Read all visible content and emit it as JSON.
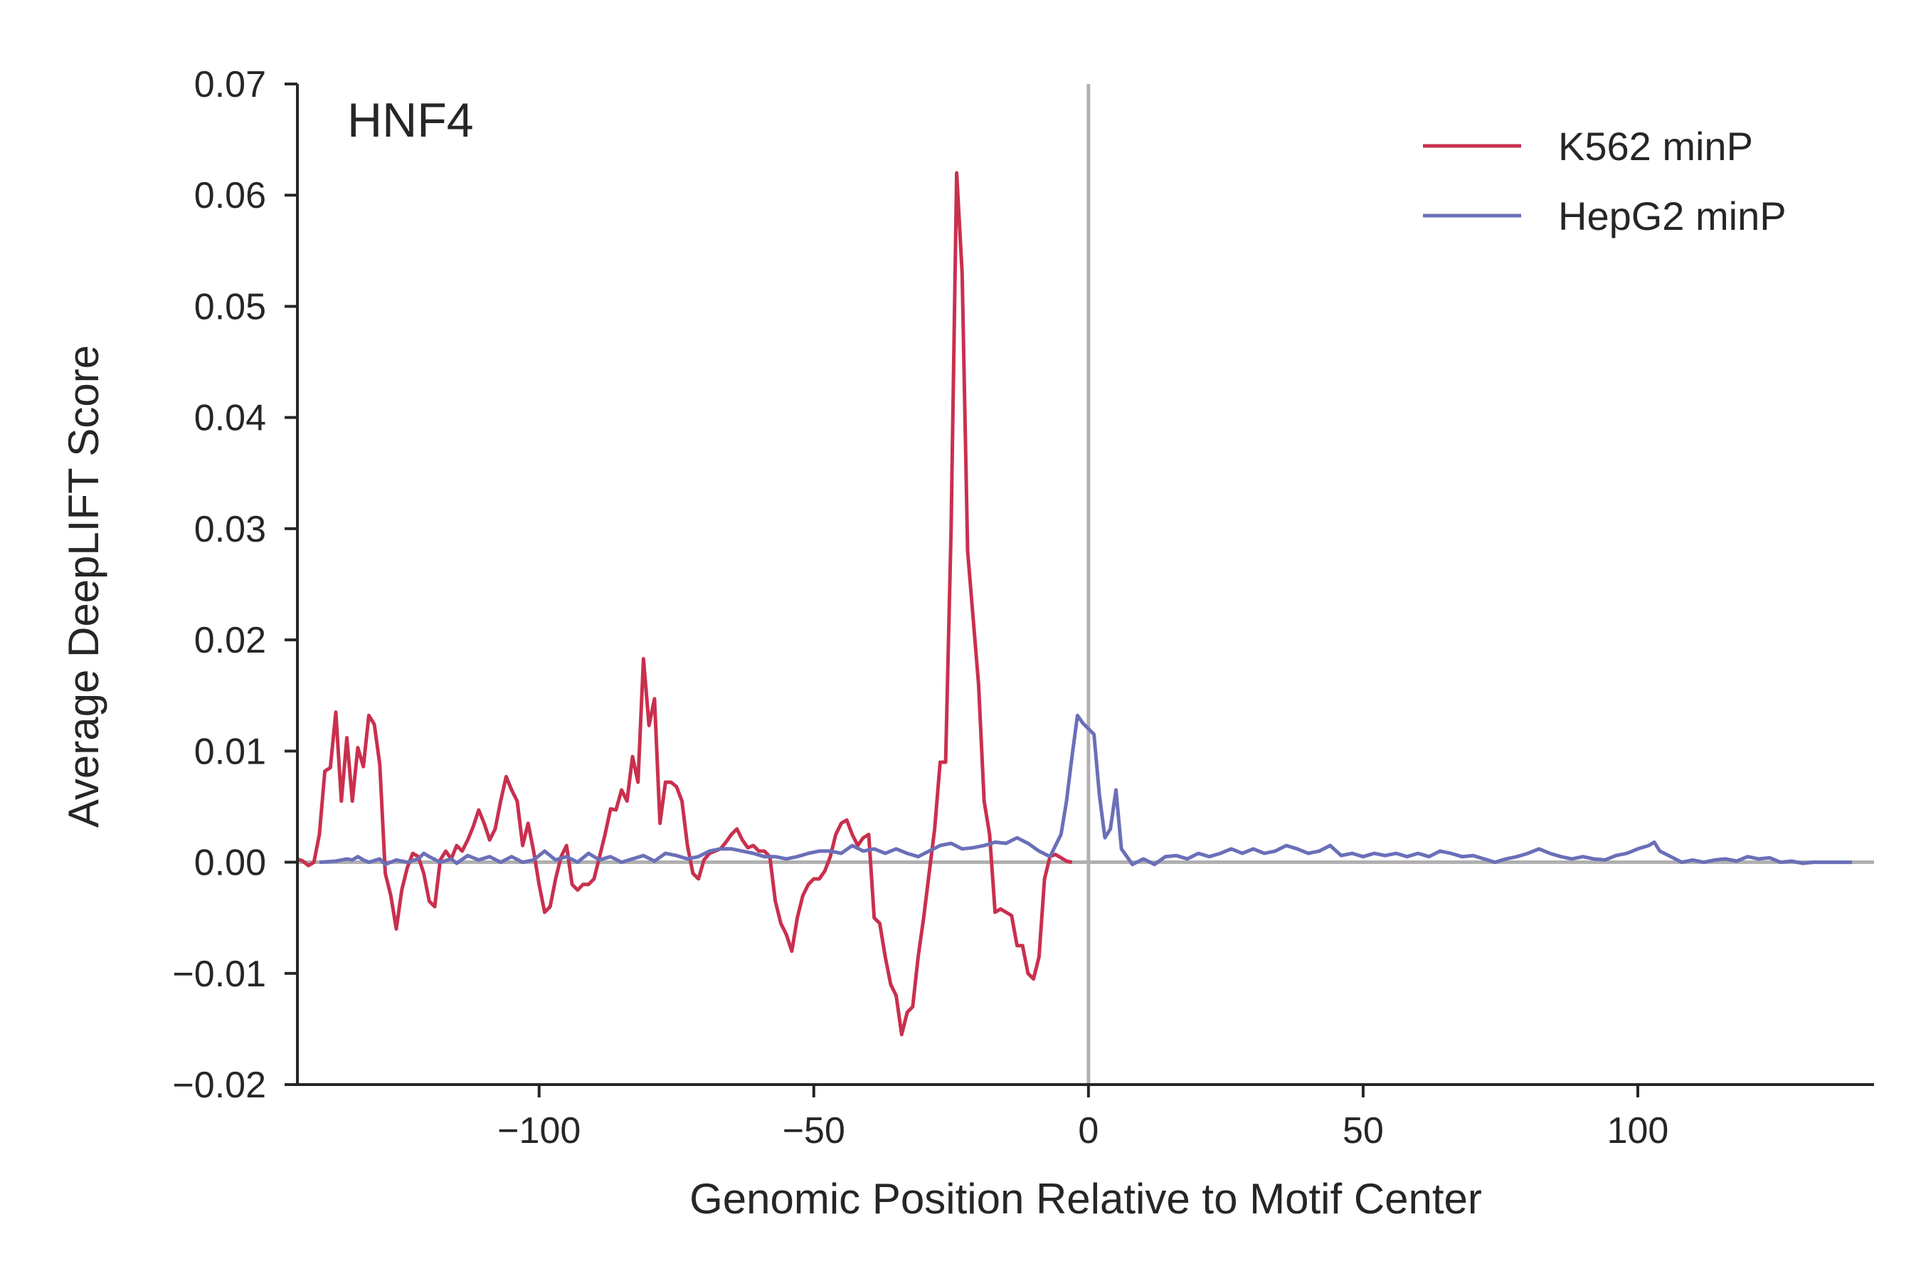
{
  "chart_data": {
    "type": "line",
    "title": "HNF4",
    "xlabel": "Genomic Position Relative to Motif Center",
    "ylabel": "Average DeepLIFT Score",
    "xlim": [
      -144,
      143
    ],
    "ylim": [
      -0.02,
      0.07
    ],
    "xticks": [
      -100,
      -50,
      0,
      50,
      100
    ],
    "xtick_labels": [
      "−100",
      "−50",
      "0",
      "50",
      "100"
    ],
    "yticks": [
      -0.02,
      -0.01,
      0.0,
      0.01,
      0.02,
      0.03,
      0.04,
      0.05,
      0.06,
      0.07
    ],
    "ytick_labels": [
      "−0.02",
      "−0.01",
      "0.00",
      "0.01",
      "0.02",
      "0.03",
      "0.04",
      "0.05",
      "0.06",
      "0.07"
    ],
    "reference_lines": {
      "vertical_x": 0,
      "horizontal_y": 0,
      "color": "#b0b0b0"
    },
    "grid": false,
    "legend_position": "top-right",
    "series": [
      {
        "name": "K562 minP",
        "color": "#c9304e",
        "points": [
          [
            -144,
            0.0003
          ],
          [
            -143,
            0.0001
          ],
          [
            -142,
            -0.0003
          ],
          [
            -141,
            0.0
          ],
          [
            -140,
            0.0025
          ],
          [
            -139,
            0.0082
          ],
          [
            -138,
            0.0085
          ],
          [
            -137,
            0.0135
          ],
          [
            -136,
            0.0055
          ],
          [
            -135,
            0.0112
          ],
          [
            -134,
            0.0055
          ],
          [
            -133,
            0.0103
          ],
          [
            -132,
            0.0086
          ],
          [
            -131,
            0.0132
          ],
          [
            -130,
            0.0124
          ],
          [
            -129,
            0.0088
          ],
          [
            -128,
            -0.001
          ],
          [
            -127,
            -0.003
          ],
          [
            -126,
            -0.006
          ],
          [
            -125,
            -0.0025
          ],
          [
            -124,
            -0.0005
          ],
          [
            -123,
            0.0008
          ],
          [
            -122,
            0.0005
          ],
          [
            -121,
            -0.001
          ],
          [
            -120,
            -0.0035
          ],
          [
            -119,
            -0.004
          ],
          [
            -118,
            0.0002
          ],
          [
            -117,
            0.001
          ],
          [
            -116,
            0.0003
          ],
          [
            -115,
            0.0015
          ],
          [
            -114,
            0.001
          ],
          [
            -113,
            0.002
          ],
          [
            -112,
            0.0032
          ],
          [
            -111,
            0.0047
          ],
          [
            -110,
            0.0035
          ],
          [
            -109,
            0.002
          ],
          [
            -108,
            0.003
          ],
          [
            -107,
            0.0055
          ],
          [
            -106,
            0.0077
          ],
          [
            -105,
            0.0065
          ],
          [
            -104,
            0.0055
          ],
          [
            -103,
            0.0015
          ],
          [
            -102,
            0.0035
          ],
          [
            -101,
            0.001
          ],
          [
            -100,
            -0.002
          ],
          [
            -99,
            -0.0045
          ],
          [
            -98,
            -0.004
          ],
          [
            -97,
            -0.0015
          ],
          [
            -96,
            0.0005
          ],
          [
            -95,
            0.0015
          ],
          [
            -94,
            -0.002
          ],
          [
            -93,
            -0.0025
          ],
          [
            -92,
            -0.002
          ],
          [
            -91,
            -0.002
          ],
          [
            -90,
            -0.0015
          ],
          [
            -89,
            0.0005
          ],
          [
            -88,
            0.0025
          ],
          [
            -87,
            0.0048
          ],
          [
            -86,
            0.0047
          ],
          [
            -85,
            0.0065
          ],
          [
            -84,
            0.0055
          ],
          [
            -83,
            0.0095
          ],
          [
            -82,
            0.0072
          ],
          [
            -81,
            0.0183
          ],
          [
            -80,
            0.0123
          ],
          [
            -79,
            0.0147
          ],
          [
            -78,
            0.0035
          ],
          [
            -77,
            0.0072
          ],
          [
            -76,
            0.0072
          ],
          [
            -75,
            0.0068
          ],
          [
            -74,
            0.0055
          ],
          [
            -73,
            0.0015
          ],
          [
            -72,
            -0.001
          ],
          [
            -71,
            -0.0015
          ],
          [
            -70,
            0.0002
          ],
          [
            -69,
            0.0008
          ],
          [
            -68,
            0.001
          ],
          [
            -67,
            0.0012
          ],
          [
            -66,
            0.0018
          ],
          [
            -65,
            0.0025
          ],
          [
            -64,
            0.003
          ],
          [
            -63,
            0.002
          ],
          [
            -62,
            0.0013
          ],
          [
            -61,
            0.0015
          ],
          [
            -60,
            0.001
          ],
          [
            -59,
            0.001
          ],
          [
            -58,
            0.0005
          ],
          [
            -57,
            -0.0035
          ],
          [
            -56,
            -0.0055
          ],
          [
            -55,
            -0.0065
          ],
          [
            -54,
            -0.008
          ],
          [
            -53,
            -0.005
          ],
          [
            -52,
            -0.003
          ],
          [
            -51,
            -0.002
          ],
          [
            -50,
            -0.0015
          ],
          [
            -49,
            -0.0015
          ],
          [
            -48,
            -0.0008
          ],
          [
            -47,
            0.0005
          ],
          [
            -46,
            0.0025
          ],
          [
            -45,
            0.0035
          ],
          [
            -44,
            0.0038
          ],
          [
            -43,
            0.0025
          ],
          [
            -42,
            0.0015
          ],
          [
            -41,
            0.0022
          ],
          [
            -40,
            0.0025
          ],
          [
            -39,
            -0.005
          ],
          [
            -38,
            -0.0055
          ],
          [
            -37,
            -0.0085
          ],
          [
            -36,
            -0.011
          ],
          [
            -35,
            -0.012
          ],
          [
            -34,
            -0.0155
          ],
          [
            -33,
            -0.0135
          ],
          [
            -32,
            -0.013
          ],
          [
            -31,
            -0.0085
          ],
          [
            -30,
            -0.005
          ],
          [
            -29,
            -0.001
          ],
          [
            -28,
            0.003
          ],
          [
            -27,
            0.009
          ],
          [
            -26,
            0.009
          ],
          [
            -25,
            0.03
          ],
          [
            -24,
            0.062
          ],
          [
            -23,
            0.053
          ],
          [
            -22,
            0.028
          ],
          [
            -21,
            0.022
          ],
          [
            -20,
            0.016
          ],
          [
            -19,
            0.0055
          ],
          [
            -18,
            0.0025
          ],
          [
            -17,
            -0.0045
          ],
          [
            -16,
            -0.0042
          ],
          [
            -15,
            -0.0045
          ],
          [
            -14,
            -0.0048
          ],
          [
            -13,
            -0.0075
          ],
          [
            -12,
            -0.0075
          ],
          [
            -11,
            -0.01
          ],
          [
            -10,
            -0.0105
          ],
          [
            -9,
            -0.0085
          ],
          [
            -8,
            -0.0015
          ],
          [
            -7,
            0.0005
          ],
          [
            -6,
            0.0007
          ],
          [
            -5,
            0.0004
          ],
          [
            -4,
            0.0001
          ],
          [
            -3,
            0.0
          ]
        ]
      },
      {
        "name": "HepG2 minP",
        "color": "#6a6fb8",
        "points": [
          [
            -140,
            0.0
          ],
          [
            -137,
            0.0001
          ],
          [
            -135,
            0.0003
          ],
          [
            -134,
            0.0002
          ],
          [
            -133,
            0.0005
          ],
          [
            -132,
            0.0002
          ],
          [
            -131,
            0.0
          ],
          [
            -129,
            0.0003
          ],
          [
            -128,
            -0.0002
          ],
          [
            -126,
            0.0002
          ],
          [
            -124,
            0.0
          ],
          [
            -122,
            0.0003
          ],
          [
            -121,
            0.0008
          ],
          [
            -120,
            0.0005
          ],
          [
            -118,
            0.0
          ],
          [
            -116,
            0.0003
          ],
          [
            -115,
            -0.0001
          ],
          [
            -113,
            0.0006
          ],
          [
            -111,
            0.0002
          ],
          [
            -109,
            0.0005
          ],
          [
            -107,
            0.0
          ],
          [
            -105,
            0.0005
          ],
          [
            -103,
            0.0
          ],
          [
            -101,
            0.0002
          ],
          [
            -99,
            0.001
          ],
          [
            -97,
            0.0002
          ],
          [
            -95,
            0.0005
          ],
          [
            -93,
            0.0
          ],
          [
            -91,
            0.0008
          ],
          [
            -89,
            0.0002
          ],
          [
            -87,
            0.0005
          ],
          [
            -85,
            0.0
          ],
          [
            -83,
            0.0003
          ],
          [
            -81,
            0.0006
          ],
          [
            -79,
            0.0001
          ],
          [
            -77,
            0.0008
          ],
          [
            -75,
            0.0006
          ],
          [
            -73,
            0.0003
          ],
          [
            -71,
            0.0005
          ],
          [
            -69,
            0.001
          ],
          [
            -67,
            0.0012
          ],
          [
            -65,
            0.0012
          ],
          [
            -63,
            0.001
          ],
          [
            -61,
            0.0008
          ],
          [
            -59,
            0.0005
          ],
          [
            -57,
            0.0005
          ],
          [
            -55,
            0.0003
          ],
          [
            -53,
            0.0005
          ],
          [
            -51,
            0.0008
          ],
          [
            -49,
            0.001
          ],
          [
            -47,
            0.001
          ],
          [
            -45,
            0.0008
          ],
          [
            -43,
            0.0015
          ],
          [
            -41,
            0.001
          ],
          [
            -39,
            0.0012
          ],
          [
            -37,
            0.0008
          ],
          [
            -35,
            0.0012
          ],
          [
            -33,
            0.0008
          ],
          [
            -31,
            0.0005
          ],
          [
            -29,
            0.001
          ],
          [
            -27,
            0.0015
          ],
          [
            -25,
            0.0017
          ],
          [
            -23,
            0.0012
          ],
          [
            -21,
            0.0013
          ],
          [
            -19,
            0.0015
          ],
          [
            -17,
            0.0018
          ],
          [
            -15,
            0.0017
          ],
          [
            -13,
            0.0022
          ],
          [
            -11,
            0.0017
          ],
          [
            -9,
            0.001
          ],
          [
            -7,
            0.0005
          ],
          [
            -5,
            0.0025
          ],
          [
            -4,
            0.0055
          ],
          [
            -3,
            0.0095
          ],
          [
            -2,
            0.0132
          ],
          [
            -1,
            0.0125
          ],
          [
            0,
            0.012
          ],
          [
            1,
            0.0115
          ],
          [
            2,
            0.006
          ],
          [
            3,
            0.0022
          ],
          [
            4,
            0.003
          ],
          [
            5,
            0.0065
          ],
          [
            6,
            0.0012
          ],
          [
            7,
            0.0005
          ],
          [
            8,
            -0.0002
          ],
          [
            10,
            0.0003
          ],
          [
            12,
            -0.0002
          ],
          [
            14,
            0.0005
          ],
          [
            16,
            0.0006
          ],
          [
            18,
            0.0003
          ],
          [
            20,
            0.0008
          ],
          [
            22,
            0.0005
          ],
          [
            24,
            0.0008
          ],
          [
            26,
            0.0012
          ],
          [
            28,
            0.0008
          ],
          [
            30,
            0.0012
          ],
          [
            32,
            0.0008
          ],
          [
            34,
            0.001
          ],
          [
            36,
            0.0015
          ],
          [
            38,
            0.0012
          ],
          [
            40,
            0.0008
          ],
          [
            42,
            0.001
          ],
          [
            44,
            0.0015
          ],
          [
            46,
            0.0006
          ],
          [
            48,
            0.0008
          ],
          [
            50,
            0.0005
          ],
          [
            52,
            0.0008
          ],
          [
            54,
            0.0006
          ],
          [
            56,
            0.0008
          ],
          [
            58,
            0.0005
          ],
          [
            60,
            0.0008
          ],
          [
            62,
            0.0005
          ],
          [
            64,
            0.001
          ],
          [
            66,
            0.0008
          ],
          [
            68,
            0.0005
          ],
          [
            70,
            0.0006
          ],
          [
            72,
            0.0003
          ],
          [
            74,
            0.0
          ],
          [
            76,
            0.0003
          ],
          [
            78,
            0.0005
          ],
          [
            80,
            0.0008
          ],
          [
            82,
            0.0012
          ],
          [
            84,
            0.0008
          ],
          [
            86,
            0.0005
          ],
          [
            88,
            0.0003
          ],
          [
            90,
            0.0005
          ],
          [
            92,
            0.0003
          ],
          [
            94,
            0.0002
          ],
          [
            96,
            0.0006
          ],
          [
            98,
            0.0008
          ],
          [
            100,
            0.0012
          ],
          [
            102,
            0.0015
          ],
          [
            103,
            0.0018
          ],
          [
            104,
            0.001
          ],
          [
            106,
            0.0005
          ],
          [
            108,
            0.0
          ],
          [
            110,
            0.0002
          ],
          [
            112,
            0.0
          ],
          [
            114,
            0.0002
          ],
          [
            116,
            0.0003
          ],
          [
            118,
            0.0001
          ],
          [
            120,
            0.0005
          ],
          [
            122,
            0.0003
          ],
          [
            124,
            0.0004
          ],
          [
            126,
            0.0
          ],
          [
            128,
            0.0001
          ],
          [
            130,
            -0.0001
          ],
          [
            132,
            0.0
          ],
          [
            134,
            0.0
          ],
          [
            136,
            0.0
          ],
          [
            138,
            0.0
          ],
          [
            139,
            0.0
          ]
        ]
      }
    ]
  }
}
